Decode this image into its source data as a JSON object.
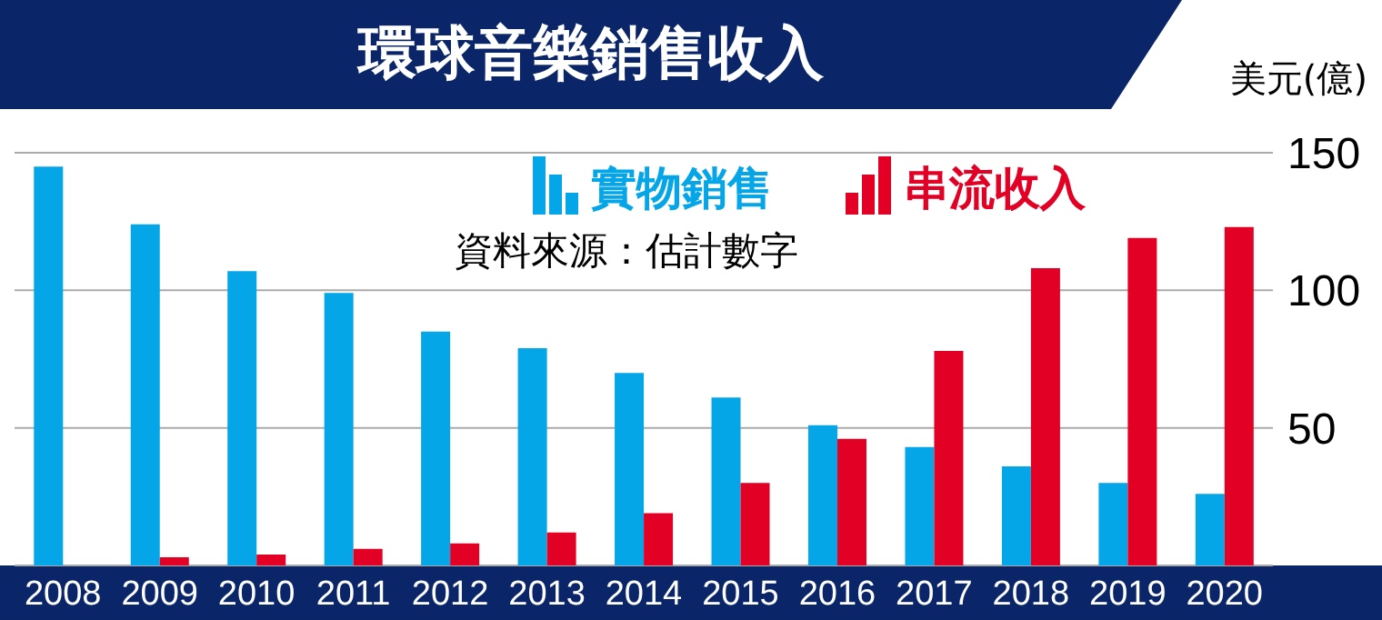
{
  "chart_data": {
    "type": "bar",
    "title": "環球音樂銷售收入",
    "ylabel": "美元(億)",
    "annotations": [
      "資料來源：估計數字"
    ],
    "categories": [
      "2008",
      "2009",
      "2010",
      "2011",
      "2012",
      "2013",
      "2014",
      "2015",
      "2016",
      "2017",
      "2018",
      "2019",
      "2020"
    ],
    "series": [
      {
        "name": "實物銷售",
        "color": "#05a6e8",
        "values": [
          145,
          124,
          107,
          99,
          85,
          79,
          70,
          61,
          51,
          43,
          36,
          30,
          26
        ]
      },
      {
        "name": "串流收入",
        "color": "#e30025",
        "values": [
          0,
          3,
          4,
          6,
          8,
          12,
          19,
          30,
          46,
          78,
          108,
          119,
          123
        ]
      }
    ],
    "ylim": [
      0,
      150
    ],
    "yticks": [
      50,
      100,
      150
    ],
    "grid": "y",
    "legend": "top"
  }
}
